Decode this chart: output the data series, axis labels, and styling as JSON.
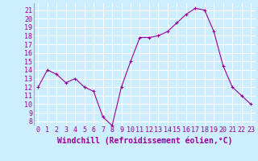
{
  "x": [
    0,
    1,
    2,
    3,
    4,
    5,
    6,
    7,
    8,
    9,
    10,
    11,
    12,
    13,
    14,
    15,
    16,
    17,
    18,
    19,
    20,
    21,
    22,
    23
  ],
  "y": [
    12,
    14,
    13.5,
    12.5,
    13,
    12,
    11.5,
    8.5,
    7.5,
    12,
    15,
    17.8,
    17.8,
    18,
    18.5,
    19.5,
    20.5,
    21.2,
    21.0,
    18.5,
    14.5,
    12,
    11,
    10
  ],
  "line_color": "#990099",
  "marker": "+",
  "marker_size": 3,
  "bg_color": "#cceeff",
  "grid_color": "#ffffff",
  "xlabel": "Windchill (Refroidissement éolien,°C)",
  "xlabel_color": "#990099",
  "xlabel_fontsize": 7,
  "tick_color": "#990099",
  "tick_fontsize": 6,
  "yticks": [
    8,
    9,
    10,
    11,
    12,
    13,
    14,
    15,
    16,
    17,
    18,
    19,
    20,
    21
  ],
  "ylim": [
    7.5,
    21.8
  ],
  "xlim": [
    -0.5,
    23.5
  ]
}
